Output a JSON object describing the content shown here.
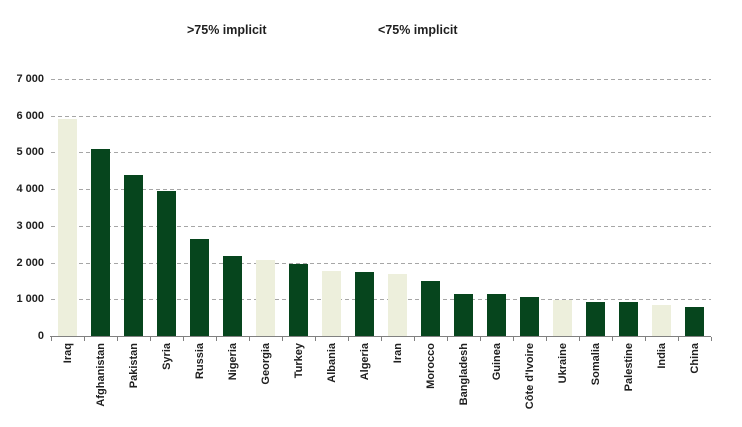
{
  "chart_data": {
    "type": "bar",
    "title": "",
    "xlabel": "",
    "ylabel": "",
    "legend": [
      {
        "label": ">75% implicit",
        "color": "#06451d"
      },
      {
        "label": "<75% implicit",
        "color": "#edefdc"
      }
    ],
    "legend_position": "top",
    "grid": "horizontal dashed",
    "colors": {
      "gridline": "#a6a6a6",
      "axis_line": "#808080",
      "text": "#1f1f1f"
    },
    "y_axis": {
      "min": 0,
      "max": 7000,
      "tick_step": 1000,
      "tick_labels": [
        "7 000",
        "6 000",
        "5 000",
        "4 000",
        "3 000",
        "2 000",
        "1 000",
        "0"
      ]
    },
    "bars": [
      {
        "category": "Iraq",
        "value": 5900,
        "series": "<75% implicit"
      },
      {
        "category": "Afghanistan",
        "value": 5080,
        "series": ">75% implicit"
      },
      {
        "category": "Pakistan",
        "value": 4380,
        "series": ">75% implicit"
      },
      {
        "category": "Syria",
        "value": 3940,
        "series": ">75% implicit"
      },
      {
        "category": "Russia",
        "value": 2650,
        "series": ">75% implicit"
      },
      {
        "category": "Nigeria",
        "value": 2190,
        "series": ">75% implicit"
      },
      {
        "category": "Georgia",
        "value": 2060,
        "series": "<75% implicit"
      },
      {
        "category": "Turkey",
        "value": 1960,
        "series": ">75% implicit"
      },
      {
        "category": "Albania",
        "value": 1760,
        "series": "<75% implicit"
      },
      {
        "category": "Algeria",
        "value": 1730,
        "series": ">75% implicit"
      },
      {
        "category": "Iran",
        "value": 1690,
        "series": "<75% implicit"
      },
      {
        "category": "Morocco",
        "value": 1510,
        "series": ">75% implicit"
      },
      {
        "category": "Bangladesh",
        "value": 1140,
        "series": ">75% implicit"
      },
      {
        "category": "Guinea",
        "value": 1140,
        "series": ">75% implicit"
      },
      {
        "category": "Côte d'Ivoire",
        "value": 1070,
        "series": ">75% implicit"
      },
      {
        "category": "Ukraine",
        "value": 970,
        "series": "<75% implicit"
      },
      {
        "category": "Somalia",
        "value": 920,
        "series": ">75% implicit"
      },
      {
        "category": "Palestine",
        "value": 920,
        "series": ">75% implicit"
      },
      {
        "category": "India",
        "value": 840,
        "series": "<75% implicit"
      },
      {
        "category": "China",
        "value": 780,
        "series": ">75% implicit"
      }
    ]
  }
}
